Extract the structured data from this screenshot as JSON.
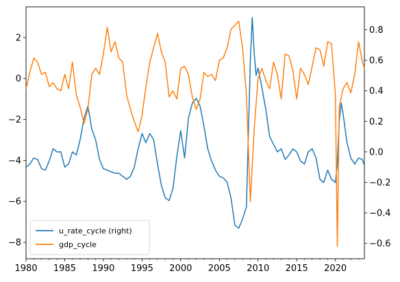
{
  "chart_data": {
    "type": "line",
    "x_ticks": [
      1980,
      1985,
      1990,
      1995,
      2000,
      2005,
      2010,
      2015,
      2020
    ],
    "xlim": [
      1980,
      2023.75
    ],
    "left_axis": {
      "ylim": [
        -8.8,
        3.5
      ],
      "ticks": [
        2,
        0,
        -2,
        -4,
        -6,
        -8
      ]
    },
    "right_axis": {
      "ylim": [
        -0.7,
        0.95
      ],
      "ticks": [
        0.8,
        0.6,
        0.4,
        0.2,
        0.0,
        -0.2,
        -0.4,
        -0.6
      ]
    },
    "legend": {
      "position": "lower-left",
      "entries": [
        "u_rate_cycle (right)",
        "gdp_cycle"
      ]
    },
    "series": [
      {
        "name": "u_rate_cycle (right)",
        "axis": "right",
        "color": "#1f77b4",
        "x": [
          1980.0,
          1980.5,
          1981.0,
          1981.5,
          1982.0,
          1982.5,
          1983.0,
          1983.5,
          1984.0,
          1984.5,
          1985.0,
          1985.5,
          1986.0,
          1986.5,
          1987.0,
          1987.5,
          1988.0,
          1988.5,
          1989.0,
          1989.5,
          1990.0,
          1990.5,
          1991.0,
          1991.5,
          1992.0,
          1992.5,
          1993.0,
          1993.5,
          1994.0,
          1994.5,
          1995.0,
          1995.5,
          1996.0,
          1996.5,
          1997.0,
          1997.5,
          1998.0,
          1998.5,
          1999.0,
          1999.5,
          2000.0,
          2000.5,
          2001.0,
          2001.5,
          2002.0,
          2002.5,
          2003.0,
          2003.5,
          2004.0,
          2004.5,
          2005.0,
          2005.5,
          2006.0,
          2006.5,
          2007.0,
          2007.5,
          2008.0,
          2008.5,
          2009.0,
          2009.25,
          2009.5,
          2009.75,
          2010.0,
          2010.5,
          2011.0,
          2011.5,
          2012.0,
          2012.5,
          2013.0,
          2013.5,
          2014.0,
          2014.5,
          2015.0,
          2015.5,
          2016.0,
          2016.5,
          2017.0,
          2017.5,
          2018.0,
          2018.5,
          2019.0,
          2019.5,
          2020.0,
          2020.25,
          2020.5,
          2020.75,
          2021.0,
          2021.5,
          2022.0,
          2022.5,
          2023.0,
          2023.5,
          2023.75
        ],
        "y": [
          -0.1,
          -0.08,
          -0.04,
          -0.05,
          -0.11,
          -0.12,
          -0.06,
          0.02,
          0.0,
          0.0,
          -0.1,
          -0.08,
          0.0,
          -0.02,
          0.08,
          0.22,
          0.3,
          0.15,
          0.08,
          -0.05,
          -0.11,
          -0.12,
          -0.13,
          -0.14,
          -0.14,
          -0.16,
          -0.18,
          -0.16,
          -0.1,
          0.02,
          0.12,
          0.06,
          0.12,
          0.08,
          -0.08,
          -0.22,
          -0.3,
          -0.32,
          -0.24,
          -0.03,
          0.14,
          -0.04,
          0.22,
          0.32,
          0.35,
          0.3,
          0.17,
          0.02,
          -0.06,
          -0.12,
          -0.16,
          -0.17,
          -0.2,
          -0.3,
          -0.48,
          -0.5,
          -0.44,
          -0.36,
          0.6,
          0.88,
          0.65,
          0.5,
          0.55,
          0.42,
          0.28,
          0.1,
          0.05,
          0.0,
          0.02,
          -0.05,
          -0.02,
          0.02,
          0.0,
          -0.06,
          -0.08,
          0.0,
          0.02,
          -0.04,
          -0.18,
          -0.2,
          -0.12,
          -0.18,
          -0.2,
          -0.08,
          0.2,
          0.32,
          0.25,
          0.06,
          -0.04,
          -0.08,
          -0.04,
          -0.05,
          -0.09
        ]
      },
      {
        "name": "gdp_cycle",
        "axis": "left",
        "color": "#ff7f0e",
        "x": [
          1980.0,
          1980.5,
          1981.0,
          1981.5,
          1982.0,
          1982.5,
          1983.0,
          1983.5,
          1984.0,
          1984.5,
          1985.0,
          1985.5,
          1986.0,
          1986.5,
          1987.0,
          1987.5,
          1988.0,
          1988.5,
          1989.0,
          1989.5,
          1990.0,
          1990.5,
          1991.0,
          1991.5,
          1992.0,
          1992.5,
          1993.0,
          1993.5,
          1994.0,
          1994.5,
          1995.0,
          1995.5,
          1996.0,
          1996.5,
          1997.0,
          1997.5,
          1998.0,
          1998.5,
          1999.0,
          1999.5,
          2000.0,
          2000.5,
          2001.0,
          2001.5,
          2002.0,
          2002.5,
          2003.0,
          2003.5,
          2004.0,
          2004.5,
          2005.0,
          2005.5,
          2006.0,
          2006.5,
          2007.0,
          2007.5,
          2008.0,
          2008.5,
          2009.0,
          2009.5,
          2010.0,
          2010.5,
          2011.0,
          2011.5,
          2012.0,
          2012.5,
          2013.0,
          2013.5,
          2014.0,
          2014.5,
          2015.0,
          2015.5,
          2016.0,
          2016.5,
          2017.0,
          2017.5,
          2018.0,
          2018.5,
          2019.0,
          2019.5,
          2020.0,
          2020.25,
          2020.5,
          2021.0,
          2021.5,
          2022.0,
          2022.5,
          2023.0,
          2023.5,
          2023.75
        ],
        "y": [
          -0.5,
          0.3,
          1.0,
          0.8,
          0.2,
          0.3,
          -0.4,
          -0.2,
          -0.5,
          -0.6,
          0.2,
          -0.5,
          0.8,
          -0.8,
          -1.4,
          -2.2,
          -1.5,
          0.2,
          0.5,
          0.2,
          1.2,
          2.5,
          1.3,
          1.8,
          1.0,
          0.8,
          -0.8,
          -1.5,
          -2.1,
          -2.6,
          -1.8,
          -0.4,
          0.8,
          1.5,
          2.2,
          1.3,
          0.8,
          -0.9,
          -0.6,
          -1.0,
          0.5,
          0.6,
          0.2,
          -0.9,
          -1.5,
          -1.0,
          0.3,
          0.1,
          0.2,
          -0.1,
          0.9,
          1.0,
          1.5,
          2.4,
          2.6,
          2.8,
          1.5,
          -0.8,
          -6.0,
          -2.5,
          0.0,
          0.5,
          -0.1,
          -0.5,
          0.8,
          0.2,
          -1.0,
          1.2,
          1.1,
          0.4,
          -1.0,
          0.5,
          0.2,
          -0.3,
          0.6,
          1.5,
          1.4,
          0.6,
          1.8,
          1.7,
          -0.8,
          -8.2,
          -1.4,
          -0.5,
          -0.2,
          -0.7,
          0.2,
          1.8,
          0.8,
          0.5
        ]
      }
    ]
  }
}
